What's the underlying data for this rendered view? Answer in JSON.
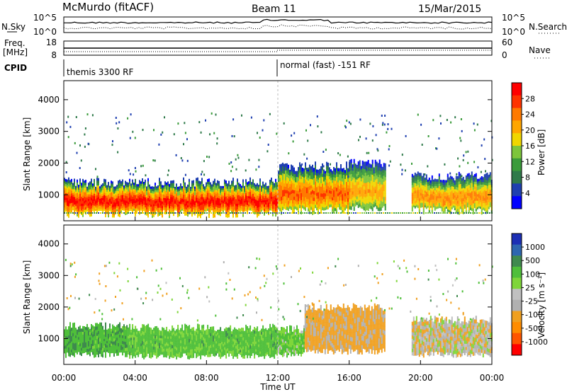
{
  "header": {
    "radar": "McMurdo (fitACF)",
    "beam": "Beam 11",
    "date": "15/Mar/2015"
  },
  "top_panels": {
    "nsky_label": "N.Sky",
    "nsearch_label": "N.Search",
    "freq_label_1": "Freq.",
    "freq_label_2": "[MHz]",
    "nave_label": "Nave",
    "cpid_label": "CPID",
    "left_ticks_noise": [
      "10^5",
      "10^0"
    ],
    "right_ticks_noise": [
      "10^5",
      "10^0"
    ],
    "left_ticks_freq": [
      "18",
      "8"
    ],
    "right_ticks_nave": [
      "60",
      "0"
    ],
    "cpid_segments": [
      {
        "label": "themis 3300 RF",
        "start_hour": 0
      },
      {
        "label": "normal (fast) -151 RF",
        "start_hour": 12
      }
    ]
  },
  "power_panel": {
    "ylabel": "Slant Range [km]",
    "colorbar_label": "Power [dB]",
    "colorbar_ticks": [
      "28",
      "24",
      "20",
      "16",
      "12",
      "8",
      "4"
    ],
    "colors": [
      "#ff0000",
      "#ff3300",
      "#ff7a00",
      "#ffa600",
      "#f0d600",
      "#7dc53b",
      "#3a9b3a",
      "#2f7a4a",
      "#1e3fb0",
      "#0000ff"
    ]
  },
  "velocity_panel": {
    "ylabel": "Slant Range [km]",
    "colorbar_label": "Velocity [m s⁻¹]",
    "colorbar_ticks": [
      "1000",
      "500",
      "100",
      "25",
      "-25",
      "-100",
      "-500",
      "-1000"
    ],
    "colors": [
      "#1c2fb5",
      "#2e66b0",
      "#3f8a4e",
      "#4fbf3a",
      "#7fd63a",
      "#c0c0c0",
      "#b0b0b0",
      "#f0a020",
      "#ff8c00",
      "#ff5500",
      "#ff0000"
    ]
  },
  "xaxis": {
    "label": "Time UT",
    "ticks": [
      "00:00",
      "04:00",
      "08:00",
      "12:00",
      "16:00",
      "20:00",
      "00:00"
    ]
  },
  "chart_data": [
    {
      "type": "heatmap",
      "title": "McMurdo (fitACF)",
      "subtitle": "Beam 11",
      "xlabel": "Time UT",
      "ylabel": "Slant Range [km]",
      "xlim": [
        0,
        24
      ],
      "ylim": [
        180,
        4600
      ],
      "yticks": [
        1000,
        2000,
        3000,
        4000
      ],
      "colorbar": {
        "label": "Power [dB]",
        "range": [
          0,
          30
        ]
      },
      "bands": [
        {
          "from_hour": 0.0,
          "to_hour": 12.0,
          "range_low_km": 400,
          "range_high_km": 1400,
          "peak_power_db": 28
        },
        {
          "from_hour": 12.0,
          "to_hour": 16.0,
          "range_low_km": 500,
          "range_high_km": 1900,
          "peak_power_db": 24
        },
        {
          "from_hour": 16.0,
          "to_hour": 18.0,
          "range_low_km": 600,
          "range_high_km": 2000,
          "peak_power_db": 20
        },
        {
          "from_hour": 19.5,
          "to_hour": 24.0,
          "range_low_km": 500,
          "range_high_km": 1600,
          "peak_power_db": 22
        }
      ]
    },
    {
      "type": "heatmap",
      "xlabel": "Time UT",
      "ylabel": "Slant Range [km]",
      "xlim": [
        0,
        24
      ],
      "ylim": [
        180,
        4600
      ],
      "yticks": [
        1000,
        2000,
        3000,
        4000
      ],
      "colorbar": {
        "label": "Velocity [m s⁻¹]",
        "range": [
          -1000,
          1000
        ]
      },
      "bands": [
        {
          "from_hour": 0.0,
          "to_hour": 3.5,
          "range_low_km": 500,
          "range_high_km": 1400,
          "velocity_ms": 200
        },
        {
          "from_hour": 3.5,
          "to_hour": 12.0,
          "range_low_km": 450,
          "range_high_km": 1350,
          "velocity_ms": 150
        },
        {
          "from_hour": 12.0,
          "to_hour": 13.5,
          "range_low_km": 500,
          "range_high_km": 1300,
          "velocity_ms": 100
        },
        {
          "from_hour": 13.5,
          "to_hour": 18.0,
          "range_low_km": 600,
          "range_high_km": 2000,
          "velocity_ms": -150
        },
        {
          "from_hour": 19.5,
          "to_hour": 24.0,
          "range_low_km": 500,
          "range_high_km": 1600,
          "velocity_ms": -50
        }
      ]
    }
  ]
}
